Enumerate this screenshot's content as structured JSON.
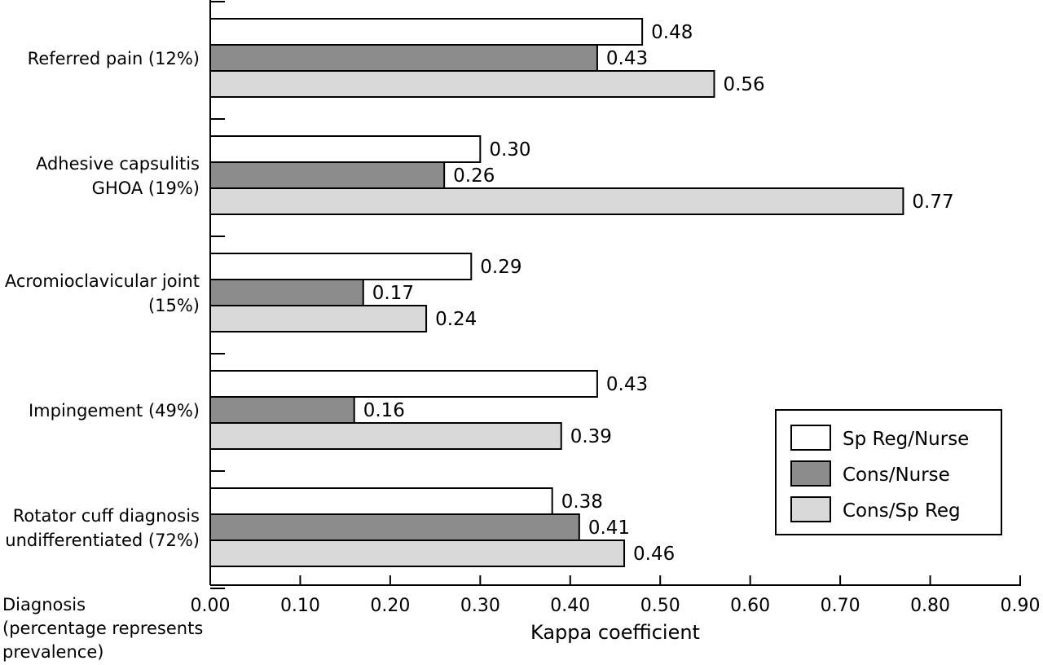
{
  "chart_data": {
    "type": "bar",
    "orientation": "horizontal",
    "categories": [
      [
        "Referred pain (12%)"
      ],
      [
        "Adhesive capsulitis",
        "GHOA (19%)"
      ],
      [
        "Acromioclavicular joint",
        "(15%)"
      ],
      [
        "Impingement (49%)"
      ],
      [
        "Rotator cuff diagnosis",
        "undifferentiated (72%)"
      ]
    ],
    "series": [
      {
        "name": "Sp Reg/Nurse",
        "color": "#ffffff",
        "values": [
          0.48,
          0.3,
          0.29,
          0.43,
          0.38
        ],
        "labels": [
          "0.48",
          "0.30",
          "0.29",
          "0.43",
          "0.38"
        ]
      },
      {
        "name": "Cons/Nurse",
        "color": "#8c8c8c",
        "values": [
          0.43,
          0.26,
          0.17,
          0.16,
          0.41
        ],
        "labels": [
          "0.43",
          "0.26",
          "0.17",
          "0.16",
          "0.41"
        ]
      },
      {
        "name": "Cons/Sp Reg",
        "color": "#d9d9d9",
        "values": [
          0.56,
          0.77,
          0.24,
          0.39,
          0.46
        ],
        "labels": [
          "0.56",
          "0.77",
          "0.24",
          "0.39",
          "0.46"
        ]
      }
    ],
    "x_ticks": [
      "0.00",
      "0.10",
      "0.20",
      "0.30",
      "0.40",
      "0.50",
      "0.60",
      "0.70",
      "0.80",
      "0.90"
    ],
    "xlim": [
      0,
      0.9
    ],
    "xlabel": "Kappa coefficient",
    "ylabel": [
      "Diagnosis",
      "(percentage represents",
      "prevalence)"
    ],
    "legend_position": "bottom-right",
    "grid": false
  }
}
